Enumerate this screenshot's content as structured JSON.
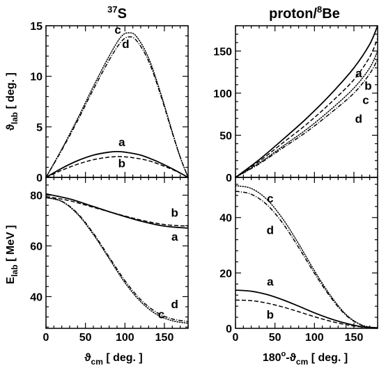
{
  "titles": {
    "left": {
      "super": "37",
      "base": "S"
    },
    "right": {
      "base": "proton/",
      "super": "8",
      "tail": "Be"
    }
  },
  "axis_labels": {
    "theta_lab": {
      "sym": "ϑ",
      "sub": "lab",
      "rest": " [ deg. ]"
    },
    "e_lab": {
      "sym": "E",
      "sub": "lab",
      "rest": "  [ MeV ]"
    },
    "left_x": {
      "sym": "ϑ",
      "sub": "cm",
      "rest": " [ deg. ]"
    },
    "right_x": {
      "pre": "180",
      "sup": "o",
      "mid": "-ϑ",
      "sub": "cm",
      "rest": " [ deg. ]"
    }
  },
  "chart_data": [
    {
      "type": "line",
      "panel": "top-left",
      "xlim": [
        0,
        180
      ],
      "ylim": [
        0,
        15
      ],
      "xticks": [
        0,
        50,
        100,
        150
      ],
      "yticks": [
        0,
        5,
        10,
        15
      ],
      "yticklabels": [
        "0",
        "5",
        "10",
        "15"
      ],
      "series": [
        {
          "name": "a",
          "style": "solid",
          "x": [
            0,
            20,
            40,
            60,
            80,
            90,
            100,
            120,
            140,
            160,
            180
          ],
          "y": [
            0,
            0.9,
            1.65,
            2.2,
            2.5,
            2.55,
            2.5,
            2.2,
            1.6,
            0.85,
            0
          ]
        },
        {
          "name": "b",
          "style": "dashed",
          "x": [
            0,
            20,
            40,
            60,
            80,
            95,
            110,
            130,
            150,
            165,
            180
          ],
          "y": [
            0,
            0.7,
            1.3,
            1.75,
            2.0,
            2.05,
            1.95,
            1.65,
            1.1,
            0.6,
            0
          ]
        },
        {
          "name": "c",
          "style": "dotted",
          "x": [
            0,
            20,
            40,
            60,
            80,
            95,
            105,
            115,
            130,
            145,
            160,
            170,
            180
          ],
          "y": [
            0,
            2.8,
            5.8,
            9.0,
            12.0,
            13.9,
            14.3,
            13.9,
            11.8,
            8.4,
            4.5,
            2.0,
            0
          ]
        },
        {
          "name": "d",
          "style": "dashdot",
          "x": [
            0,
            20,
            40,
            60,
            80,
            95,
            105,
            115,
            130,
            145,
            160,
            170,
            180
          ],
          "y": [
            0,
            2.7,
            5.6,
            8.7,
            11.6,
            13.4,
            13.9,
            13.5,
            11.5,
            8.2,
            4.4,
            2.0,
            0
          ]
        }
      ],
      "annotations": [
        {
          "text": "c",
          "x": 91,
          "y": 14.2
        },
        {
          "text": "d",
          "x": 101,
          "y": 12.8
        },
        {
          "text": "a",
          "x": 96,
          "y": 3.1
        },
        {
          "text": "b",
          "x": 96,
          "y": 1.0
        }
      ]
    },
    {
      "type": "line",
      "panel": "top-right",
      "xlim": [
        0,
        180
      ],
      "ylim": [
        0,
        180
      ],
      "xticks": [
        0,
        50,
        100,
        150
      ],
      "yticks": [
        0,
        50,
        100,
        150
      ],
      "yticklabels": [
        "0",
        "50",
        "100",
        "150"
      ],
      "series": [
        {
          "name": "a",
          "style": "solid",
          "x": [
            0,
            30,
            60,
            90,
            120,
            150,
            170,
            180
          ],
          "y": [
            0,
            21,
            45,
            70,
            98,
            130,
            158,
            180
          ]
        },
        {
          "name": "b",
          "style": "dashed",
          "x": [
            0,
            30,
            60,
            90,
            120,
            150,
            170,
            180
          ],
          "y": [
            0,
            19,
            41,
            63,
            88,
            116,
            143,
            165
          ]
        },
        {
          "name": "c",
          "style": "dotted",
          "x": [
            0,
            30,
            60,
            90,
            120,
            150,
            170,
            180
          ],
          "y": [
            0,
            17,
            37,
            57,
            80,
            106,
            130,
            150
          ]
        },
        {
          "name": "d",
          "style": "dashdot",
          "x": [
            0,
            30,
            60,
            90,
            120,
            150,
            170,
            180
          ],
          "y": [
            0,
            16,
            35,
            54,
            76,
            100,
            123,
            140
          ]
        }
      ],
      "annotations": [
        {
          "text": "a",
          "x": 156,
          "y": 119
        },
        {
          "text": "b",
          "x": 168,
          "y": 104
        },
        {
          "text": "c",
          "x": 165,
          "y": 87
        },
        {
          "text": "d",
          "x": 156,
          "y": 65
        }
      ]
    },
    {
      "type": "line",
      "panel": "bottom-left",
      "xlim": [
        0,
        180
      ],
      "ylim": [
        27.5,
        87
      ],
      "xticks": [
        0,
        50,
        100,
        150
      ],
      "xticklabels": [
        "0",
        "50",
        "100",
        "150"
      ],
      "yticks": [
        40,
        60,
        80
      ],
      "yticklabels": [
        "40",
        "60",
        "80"
      ],
      "series": [
        {
          "name": "a",
          "style": "solid",
          "x": [
            0,
            30,
            60,
            90,
            120,
            150,
            180
          ],
          "y": [
            80.5,
            78.5,
            75.5,
            72.5,
            69.8,
            67.8,
            67.0
          ]
        },
        {
          "name": "b",
          "style": "dashed",
          "x": [
            0,
            30,
            60,
            90,
            120,
            150,
            180
          ],
          "y": [
            79.5,
            77.8,
            75.2,
            72.6,
            70.2,
            68.4,
            67.8
          ]
        },
        {
          "name": "c",
          "style": "dotted",
          "x": [
            0,
            20,
            40,
            60,
            80,
            100,
            120,
            140,
            160,
            180
          ],
          "y": [
            79.0,
            77.5,
            72.5,
            64.5,
            55.0,
            45.5,
            38.0,
            33.0,
            30.5,
            29.5
          ]
        },
        {
          "name": "d",
          "style": "dashdot",
          "x": [
            0,
            20,
            40,
            60,
            80,
            100,
            120,
            140,
            160,
            180
          ],
          "y": [
            79.0,
            77.6,
            72.8,
            65.0,
            55.6,
            46.3,
            38.8,
            33.8,
            31.2,
            30.2
          ]
        }
      ],
      "annotations": [
        {
          "text": "b",
          "x": 163,
          "y": 71.5
        },
        {
          "text": "a",
          "x": 163,
          "y": 62
        },
        {
          "text": "d",
          "x": 163,
          "y": 35.5
        },
        {
          "text": "c",
          "x": 146,
          "y": 31.5
        }
      ]
    },
    {
      "type": "line",
      "panel": "bottom-right",
      "xlim": [
        0,
        180
      ],
      "ylim": [
        0,
        54.5
      ],
      "xticks": [
        0,
        50,
        100,
        150
      ],
      "xticklabels": [
        "0",
        "50",
        "100",
        "150"
      ],
      "yticks": [
        0,
        20,
        40
      ],
      "yticklabels": [
        "0",
        "20",
        "40"
      ],
      "series": [
        {
          "name": "a",
          "style": "solid",
          "x": [
            0,
            20,
            40,
            60,
            80,
            100,
            120,
            140,
            160,
            180
          ],
          "y": [
            13.8,
            13.4,
            12.2,
            10.3,
            8.0,
            5.6,
            3.5,
            1.8,
            0.6,
            0.2
          ]
        },
        {
          "name": "b",
          "style": "dashed",
          "x": [
            0,
            20,
            40,
            60,
            80,
            100,
            120,
            140,
            160,
            180
          ],
          "y": [
            10.2,
            10.0,
            9.1,
            7.7,
            6.0,
            4.2,
            2.6,
            1.3,
            0.5,
            0.1
          ]
        },
        {
          "name": "c",
          "style": "dotted",
          "x": [
            0,
            20,
            40,
            60,
            80,
            100,
            120,
            140,
            160,
            180
          ],
          "y": [
            51.5,
            50.5,
            46.5,
            39.5,
            30.5,
            20.8,
            12.0,
            5.0,
            1.2,
            0
          ]
        },
        {
          "name": "d",
          "style": "dashdot",
          "x": [
            0,
            20,
            40,
            60,
            80,
            100,
            120,
            140,
            160,
            180
          ],
          "y": [
            49.5,
            48.4,
            44.6,
            37.9,
            29.2,
            19.9,
            11.4,
            4.7,
            1.1,
            0
          ]
        }
      ],
      "annotations": [
        {
          "text": "c",
          "x": 44,
          "y": 45.5
        },
        {
          "text": "d",
          "x": 44,
          "y": 34
        },
        {
          "text": "a",
          "x": 44,
          "y": 15.5
        },
        {
          "text": "b",
          "x": 44,
          "y": 3.5
        }
      ]
    }
  ]
}
